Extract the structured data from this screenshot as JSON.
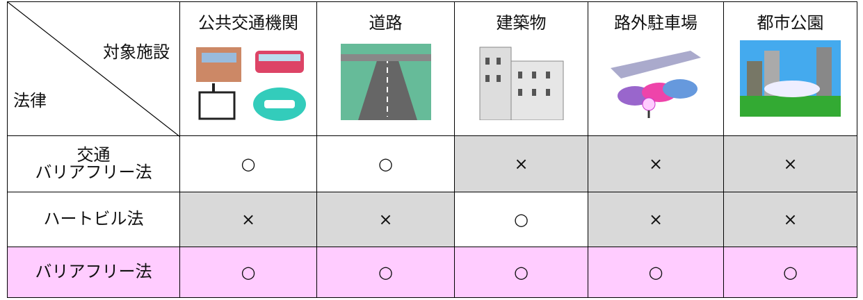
{
  "header": {
    "corner_top": "対象施設",
    "corner_bottom": "法律",
    "columns": [
      "公共交通機関",
      "道路",
      "建築物",
      "路外駐車場",
      "都市公園"
    ]
  },
  "rows": [
    {
      "label": [
        "交通",
        "バリアフリー法"
      ],
      "cells": [
        "○",
        "○",
        "×",
        "×",
        "×"
      ]
    },
    {
      "label": [
        "ハートビル法"
      ],
      "cells": [
        "×",
        "×",
        "○",
        "×",
        "×"
      ]
    },
    {
      "label": [
        "バリアフリー法"
      ],
      "cells": [
        "○",
        "○",
        "○",
        "○",
        "○"
      ]
    }
  ]
}
